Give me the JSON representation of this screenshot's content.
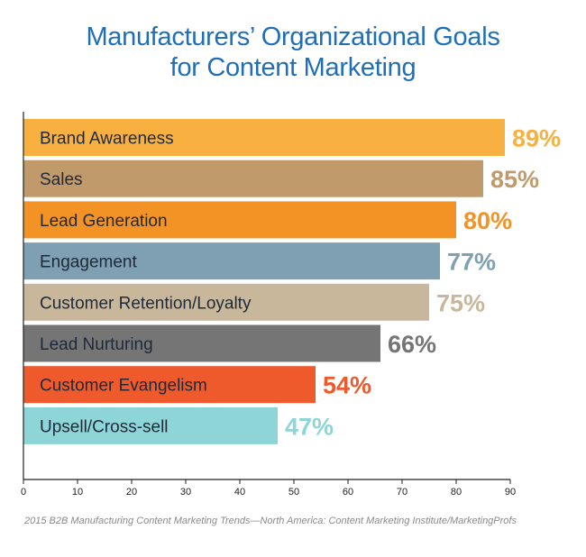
{
  "title_line1": "Manufacturers’ Organizational Goals",
  "title_line2": "for Content Marketing",
  "source": "2015 B2B Manufacturing Content Marketing Trends—North America: Content Marketing Institute/MarketingProfs",
  "chart_data": {
    "type": "bar",
    "orientation": "horizontal",
    "title": "Manufacturers’ Organizational Goals for Content Marketing",
    "xlim": [
      0,
      90
    ],
    "x_ticks": [
      "0",
      "10",
      "20",
      "30",
      "40",
      "50",
      "60",
      "70",
      "80",
      "90"
    ],
    "grid": false,
    "categories": [
      "Brand Awareness",
      "Sales",
      "Lead Generation",
      "Engagement",
      "Customer Retention/Loyalty",
      "Lead Nurturing",
      "Customer Evangelism",
      "Upsell/Cross-sell"
    ],
    "values": [
      89,
      85,
      80,
      77,
      75,
      66,
      54,
      47
    ],
    "value_labels": [
      "89%",
      "85%",
      "80%",
      "77%",
      "75%",
      "66%",
      "54%",
      "47%"
    ],
    "colors": [
      "#f8b040",
      "#c19a6b",
      "#f39325",
      "#7f9fb2",
      "#c9b79b",
      "#767575",
      "#ef5a2d",
      "#8ed5d8"
    ]
  }
}
